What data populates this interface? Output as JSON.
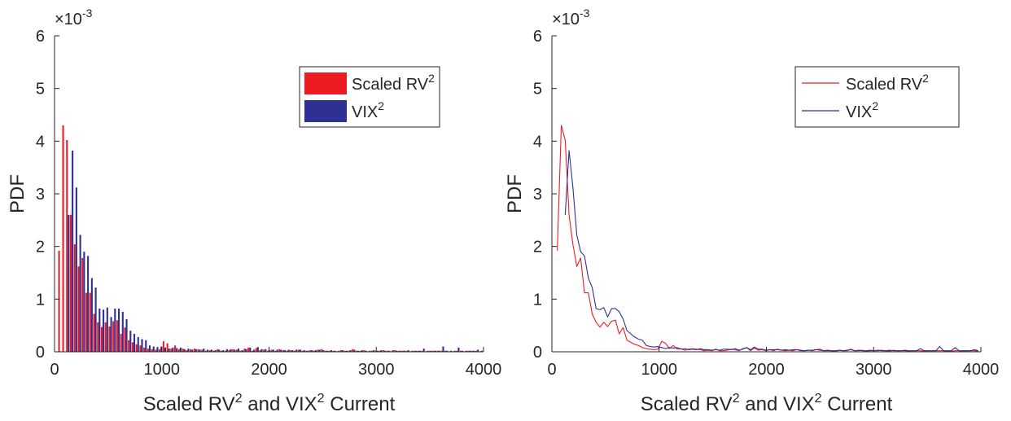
{
  "figure": {
    "colors": {
      "rv": "#ed1c24",
      "vix": "#2e3192",
      "axis": "#262626",
      "background": "#ffffff"
    }
  },
  "chart_data": [
    {
      "type": "bar",
      "exponent_label": "×10",
      "exponent_power": "-3",
      "xlabel_parts": [
        "Scaled RV",
        "2",
        " and VIX",
        "2",
        " Current"
      ],
      "ylabel": "PDF",
      "xlim": [
        0,
        4000
      ],
      "ylim": [
        0,
        6
      ],
      "y_unit_scale": 0.001,
      "xticks": [
        0,
        1000,
        2000,
        3000,
        4000
      ],
      "xtick_labels": [
        "0",
        "1000",
        "2000",
        "3000",
        "4000"
      ],
      "yticks": [
        0,
        1,
        2,
        3,
        4,
        5,
        6
      ],
      "ytick_labels": [
        "0",
        "1",
        "2",
        "3",
        "4",
        "5",
        "6"
      ],
      "legend_position": "top-right",
      "legend": [
        {
          "base": "Scaled RV",
          "sup": "2",
          "color": "#ed1c24"
        },
        {
          "base": "VIX",
          "sup": "2",
          "color": "#2e3192"
        }
      ],
      "x": [
        50,
        88,
        124,
        160,
        196,
        232,
        268,
        304,
        340,
        376,
        412,
        448,
        484,
        520,
        556,
        592,
        628,
        664,
        700,
        736,
        772,
        808,
        844,
        880,
        916,
        952,
        988,
        1024,
        1060,
        1096,
        1132,
        1168,
        1204,
        1240,
        1276,
        1312,
        1348,
        1384,
        1420,
        1456,
        1492,
        1528,
        1564,
        1600,
        1636,
        1672,
        1708,
        1744,
        1780,
        1816,
        1852,
        1888,
        1924,
        1960,
        1996,
        2032,
        2068,
        2104,
        2140,
        2176,
        2212,
        2248,
        2284,
        2320,
        2356,
        2392,
        2428,
        2464,
        2500,
        2536,
        2572,
        2608,
        2644,
        2680,
        2716,
        2752,
        2788,
        2824,
        2860,
        2896,
        2932,
        2968,
        3004,
        3040,
        3076,
        3112,
        3148,
        3184,
        3220,
        3256,
        3292,
        3328,
        3364,
        3400,
        3436,
        3472,
        3508,
        3544,
        3580,
        3616,
        3652,
        3688,
        3724,
        3760,
        3796,
        3832,
        3868,
        3904,
        3940,
        3976
      ],
      "series": [
        {
          "name": "Scaled RV2",
          "values": [
            1.92,
            4.3,
            4.02,
            2.6,
            2.04,
            1.62,
            1.78,
            1.12,
            1.12,
            0.72,
            0.56,
            0.47,
            0.56,
            0.48,
            0.58,
            0.6,
            0.34,
            0.46,
            0.22,
            0.18,
            0.14,
            0.12,
            0.08,
            0.06,
            0.05,
            0.04,
            0.05,
            0.2,
            0.16,
            0.06,
            0.12,
            0.05,
            0.06,
            0.03,
            0.05,
            0.06,
            0.05,
            0.04,
            0.02,
            0.03,
            0.02,
            0.05,
            0.02,
            0.02,
            0.03,
            0.05,
            0.04,
            0.02,
            0.06,
            0.08,
            0.02,
            0.07,
            0.03,
            0.04,
            0.02,
            0.04,
            0.02,
            0.05,
            0.03,
            0.02,
            0.03,
            0.02,
            0.04,
            0.02,
            0.02,
            0.03,
            0.02,
            0.04,
            0.05,
            0.02,
            0.02,
            0.02,
            0.01,
            0.03,
            0.02,
            0.02,
            0.05,
            0.02,
            0.02,
            0.03,
            0.01,
            0.02,
            0.02,
            0.02,
            0.03,
            0.02,
            0.01,
            0.03,
            0.02,
            0.02,
            0.02,
            0.01,
            0.02,
            0.02,
            0.02,
            0.01,
            0.02,
            0.02,
            0.02,
            0.02,
            0.02,
            0.01,
            0.01,
            0.02,
            0.02,
            0.01,
            0.02,
            0.02,
            0.02,
            0.01
          ]
        },
        {
          "name": "VIX2",
          "values": [
            0.0,
            0.0,
            2.6,
            3.82,
            3.12,
            2.22,
            1.9,
            1.82,
            1.4,
            1.22,
            0.82,
            0.8,
            0.84,
            0.66,
            0.82,
            0.82,
            0.76,
            0.62,
            0.4,
            0.34,
            0.28,
            0.24,
            0.22,
            0.12,
            0.1,
            0.09,
            0.1,
            0.08,
            0.06,
            0.08,
            0.07,
            0.08,
            0.05,
            0.06,
            0.04,
            0.05,
            0.04,
            0.06,
            0.04,
            0.04,
            0.03,
            0.04,
            0.03,
            0.05,
            0.05,
            0.04,
            0.06,
            0.03,
            0.05,
            0.08,
            0.04,
            0.09,
            0.05,
            0.05,
            0.03,
            0.04,
            0.04,
            0.04,
            0.03,
            0.04,
            0.03,
            0.04,
            0.04,
            0.03,
            0.02,
            0.03,
            0.03,
            0.04,
            0.03,
            0.02,
            0.03,
            0.02,
            0.02,
            0.03,
            0.02,
            0.03,
            0.04,
            0.02,
            0.03,
            0.02,
            0.02,
            0.03,
            0.02,
            0.03,
            0.02,
            0.02,
            0.03,
            0.02,
            0.02,
            0.02,
            0.03,
            0.02,
            0.02,
            0.02,
            0.06,
            0.02,
            0.02,
            0.02,
            0.02,
            0.1,
            0.02,
            0.02,
            0.02,
            0.08,
            0.02,
            0.02,
            0.02,
            0.02,
            0.04,
            0.02
          ]
        }
      ]
    },
    {
      "type": "line",
      "exponent_label": "×10",
      "exponent_power": "-3",
      "xlabel_parts": [
        "Scaled RV",
        "2",
        " and VIX",
        "2",
        " Current"
      ],
      "ylabel": "PDF",
      "xlim": [
        0,
        4000
      ],
      "ylim": [
        0,
        6
      ],
      "y_unit_scale": 0.001,
      "xticks": [
        0,
        1000,
        2000,
        3000,
        4000
      ],
      "xtick_labels": [
        "0",
        "1000",
        "2000",
        "3000",
        "4000"
      ],
      "yticks": [
        0,
        1,
        2,
        3,
        4,
        5,
        6
      ],
      "ytick_labels": [
        "0",
        "1",
        "2",
        "3",
        "4",
        "5",
        "6"
      ],
      "legend_position": "top-right",
      "legend": [
        {
          "base": "Scaled RV",
          "sup": "2",
          "color": "#ed1c24"
        },
        {
          "base": "VIX",
          "sup": "2",
          "color": "#2e3192"
        }
      ],
      "x": [
        50,
        88,
        124,
        160,
        196,
        232,
        268,
        304,
        340,
        376,
        412,
        448,
        484,
        520,
        556,
        592,
        628,
        664,
        700,
        736,
        772,
        808,
        844,
        880,
        916,
        952,
        988,
        1024,
        1060,
        1096,
        1132,
        1168,
        1204,
        1240,
        1276,
        1312,
        1348,
        1384,
        1420,
        1456,
        1492,
        1528,
        1564,
        1600,
        1636,
        1672,
        1708,
        1744,
        1780,
        1816,
        1852,
        1888,
        1924,
        1960,
        1996,
        2032,
        2068,
        2104,
        2140,
        2176,
        2212,
        2248,
        2284,
        2320,
        2356,
        2392,
        2428,
        2464,
        2500,
        2536,
        2572,
        2608,
        2644,
        2680,
        2716,
        2752,
        2788,
        2824,
        2860,
        2896,
        2932,
        2968,
        3004,
        3040,
        3076,
        3112,
        3148,
        3184,
        3220,
        3256,
        3292,
        3328,
        3364,
        3400,
        3436,
        3472,
        3508,
        3544,
        3580,
        3616,
        3652,
        3688,
        3724,
        3760,
        3796,
        3832,
        3868,
        3904,
        3940,
        3976
      ],
      "series": [
        {
          "name": "Scaled RV2",
          "values": [
            1.92,
            4.3,
            4.02,
            2.6,
            2.04,
            1.62,
            1.78,
            1.12,
            1.12,
            0.72,
            0.56,
            0.47,
            0.56,
            0.48,
            0.58,
            0.6,
            0.34,
            0.46,
            0.22,
            0.18,
            0.14,
            0.12,
            0.08,
            0.06,
            0.05,
            0.04,
            0.05,
            0.2,
            0.16,
            0.06,
            0.12,
            0.05,
            0.06,
            0.03,
            0.05,
            0.06,
            0.05,
            0.04,
            0.02,
            0.03,
            0.02,
            0.05,
            0.02,
            0.02,
            0.03,
            0.05,
            0.04,
            0.02,
            0.06,
            0.08,
            0.02,
            0.07,
            0.03,
            0.04,
            0.02,
            0.04,
            0.02,
            0.05,
            0.03,
            0.02,
            0.03,
            0.02,
            0.04,
            0.02,
            0.02,
            0.03,
            0.02,
            0.04,
            0.05,
            0.02,
            0.02,
            0.02,
            0.01,
            0.03,
            0.02,
            0.02,
            0.05,
            0.02,
            0.02,
            0.03,
            0.01,
            0.02,
            0.02,
            0.02,
            0.03,
            0.02,
            0.01,
            0.03,
            0.02,
            0.02,
            0.02,
            0.01,
            0.02,
            0.02,
            0.02,
            0.01,
            0.02,
            0.02,
            0.02,
            0.02,
            0.02,
            0.01,
            0.01,
            0.02,
            0.02,
            0.01,
            0.02,
            0.02,
            0.02,
            0.01
          ]
        },
        {
          "name": "VIX2",
          "start_index": 2,
          "values": [
            0.0,
            0.0,
            2.6,
            3.82,
            3.12,
            2.22,
            1.9,
            1.82,
            1.4,
            1.22,
            0.82,
            0.8,
            0.84,
            0.66,
            0.82,
            0.82,
            0.76,
            0.62,
            0.4,
            0.34,
            0.28,
            0.24,
            0.22,
            0.12,
            0.1,
            0.09,
            0.1,
            0.08,
            0.06,
            0.08,
            0.07,
            0.08,
            0.05,
            0.06,
            0.04,
            0.05,
            0.04,
            0.06,
            0.04,
            0.04,
            0.03,
            0.04,
            0.03,
            0.05,
            0.05,
            0.04,
            0.06,
            0.03,
            0.05,
            0.08,
            0.04,
            0.09,
            0.05,
            0.05,
            0.03,
            0.04,
            0.04,
            0.04,
            0.03,
            0.04,
            0.03,
            0.04,
            0.04,
            0.03,
            0.02,
            0.03,
            0.03,
            0.04,
            0.03,
            0.02,
            0.03,
            0.02,
            0.02,
            0.03,
            0.02,
            0.03,
            0.04,
            0.02,
            0.03,
            0.02,
            0.02,
            0.03,
            0.02,
            0.03,
            0.02,
            0.02,
            0.03,
            0.02,
            0.02,
            0.02,
            0.03,
            0.02,
            0.02,
            0.02,
            0.06,
            0.02,
            0.02,
            0.02,
            0.02,
            0.1,
            0.02,
            0.02,
            0.02,
            0.08,
            0.02,
            0.02,
            0.02,
            0.02,
            0.04,
            0.02
          ]
        }
      ]
    }
  ]
}
